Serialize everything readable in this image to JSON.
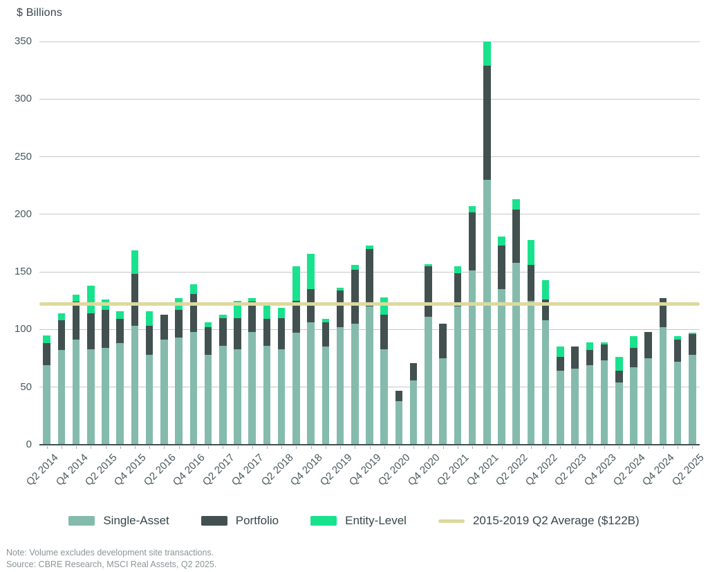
{
  "title": "$ Billions",
  "footer": {
    "note": "Note: Volume excludes development site transactions.",
    "source": "Source: CBRE Research, MSCI Real Assets, Q2 2025."
  },
  "legend": [
    {
      "id": "single-asset",
      "label": "Single-Asset",
      "color": "#85BBAC",
      "type": "box"
    },
    {
      "id": "portfolio",
      "label": "Portfolio",
      "color": "#425150",
      "type": "box"
    },
    {
      "id": "entity-level",
      "label": "Entity-Level",
      "color": "#19E28D",
      "type": "box"
    },
    {
      "id": "q2-average",
      "label": "2015-2019 Q2 Average ($122B)",
      "color": "#DCD99E",
      "type": "line"
    }
  ],
  "chart_data": {
    "type": "bar",
    "stacked": true,
    "title": "$ Billions",
    "ylabel": "$ Billions",
    "xlabel": "",
    "ylim": [
      0,
      350
    ],
    "ytick_step": 50,
    "grid": true,
    "legend_position": "bottom",
    "x_label_interval": 2,
    "categories": [
      "Q2 2014",
      "Q3 2014",
      "Q4 2014",
      "Q1 2015",
      "Q2 2015",
      "Q3 2015",
      "Q4 2015",
      "Q1 2016",
      "Q2 2016",
      "Q3 2016",
      "Q4 2016",
      "Q1 2017",
      "Q2 2017",
      "Q3 2017",
      "Q4 2017",
      "Q1 2018",
      "Q2 2018",
      "Q3 2018",
      "Q4 2018",
      "Q1 2019",
      "Q2 2019",
      "Q3 2019",
      "Q4 2019",
      "Q1 2020",
      "Q2 2020",
      "Q3 2020",
      "Q4 2020",
      "Q1 2021",
      "Q2 2021",
      "Q3 2021",
      "Q4 2021",
      "Q1 2022",
      "Q2 2022",
      "Q3 2022",
      "Q4 2022",
      "Q1 2023",
      "Q2 2023",
      "Q3 2023",
      "Q4 2023",
      "Q1 2024",
      "Q2 2024",
      "Q3 2024",
      "Q4 2024",
      "Q1 2025",
      "Q2 2025"
    ],
    "series": [
      {
        "name": "Single-Asset",
        "color": "#85BBAC",
        "values": [
          69,
          82,
          91,
          83,
          84,
          88,
          103,
          78,
          91,
          93,
          98,
          78,
          86,
          83,
          98,
          86,
          83,
          97,
          106,
          85,
          102,
          105,
          120,
          83,
          38,
          56,
          111,
          75,
          120,
          151,
          230,
          135,
          158,
          125,
          108,
          64,
          66,
          69,
          73,
          54,
          67,
          75,
          102,
          72,
          78
        ]
      },
      {
        "name": "Portfolio",
        "color": "#425150",
        "values": [
          19,
          26,
          33,
          31,
          33,
          21,
          45,
          25,
          22,
          24,
          33,
          24,
          24,
          27,
          26,
          23,
          27,
          28,
          29,
          21,
          32,
          47,
          50,
          30,
          9,
          15,
          44,
          30,
          29,
          51,
          99,
          38,
          46,
          31,
          18,
          12,
          19,
          13,
          14,
          10,
          17,
          23,
          25,
          19,
          18
        ]
      },
      {
        "name": "Entity-Level",
        "color": "#19E28D",
        "values": [
          7,
          6,
          6,
          24,
          9,
          7,
          21,
          13,
          0,
          10,
          8,
          4,
          3,
          15,
          3,
          12,
          9,
          30,
          31,
          3,
          2,
          4,
          3,
          15,
          0,
          0,
          2,
          0,
          6,
          5,
          21,
          8,
          9,
          22,
          17,
          9,
          0,
          7,
          2,
          12,
          10,
          0,
          0,
          3,
          1
        ]
      }
    ],
    "reference_line": {
      "label": "2015-2019 Q2 Average ($122B)",
      "value": 122,
      "color": "#DCD99E"
    }
  }
}
